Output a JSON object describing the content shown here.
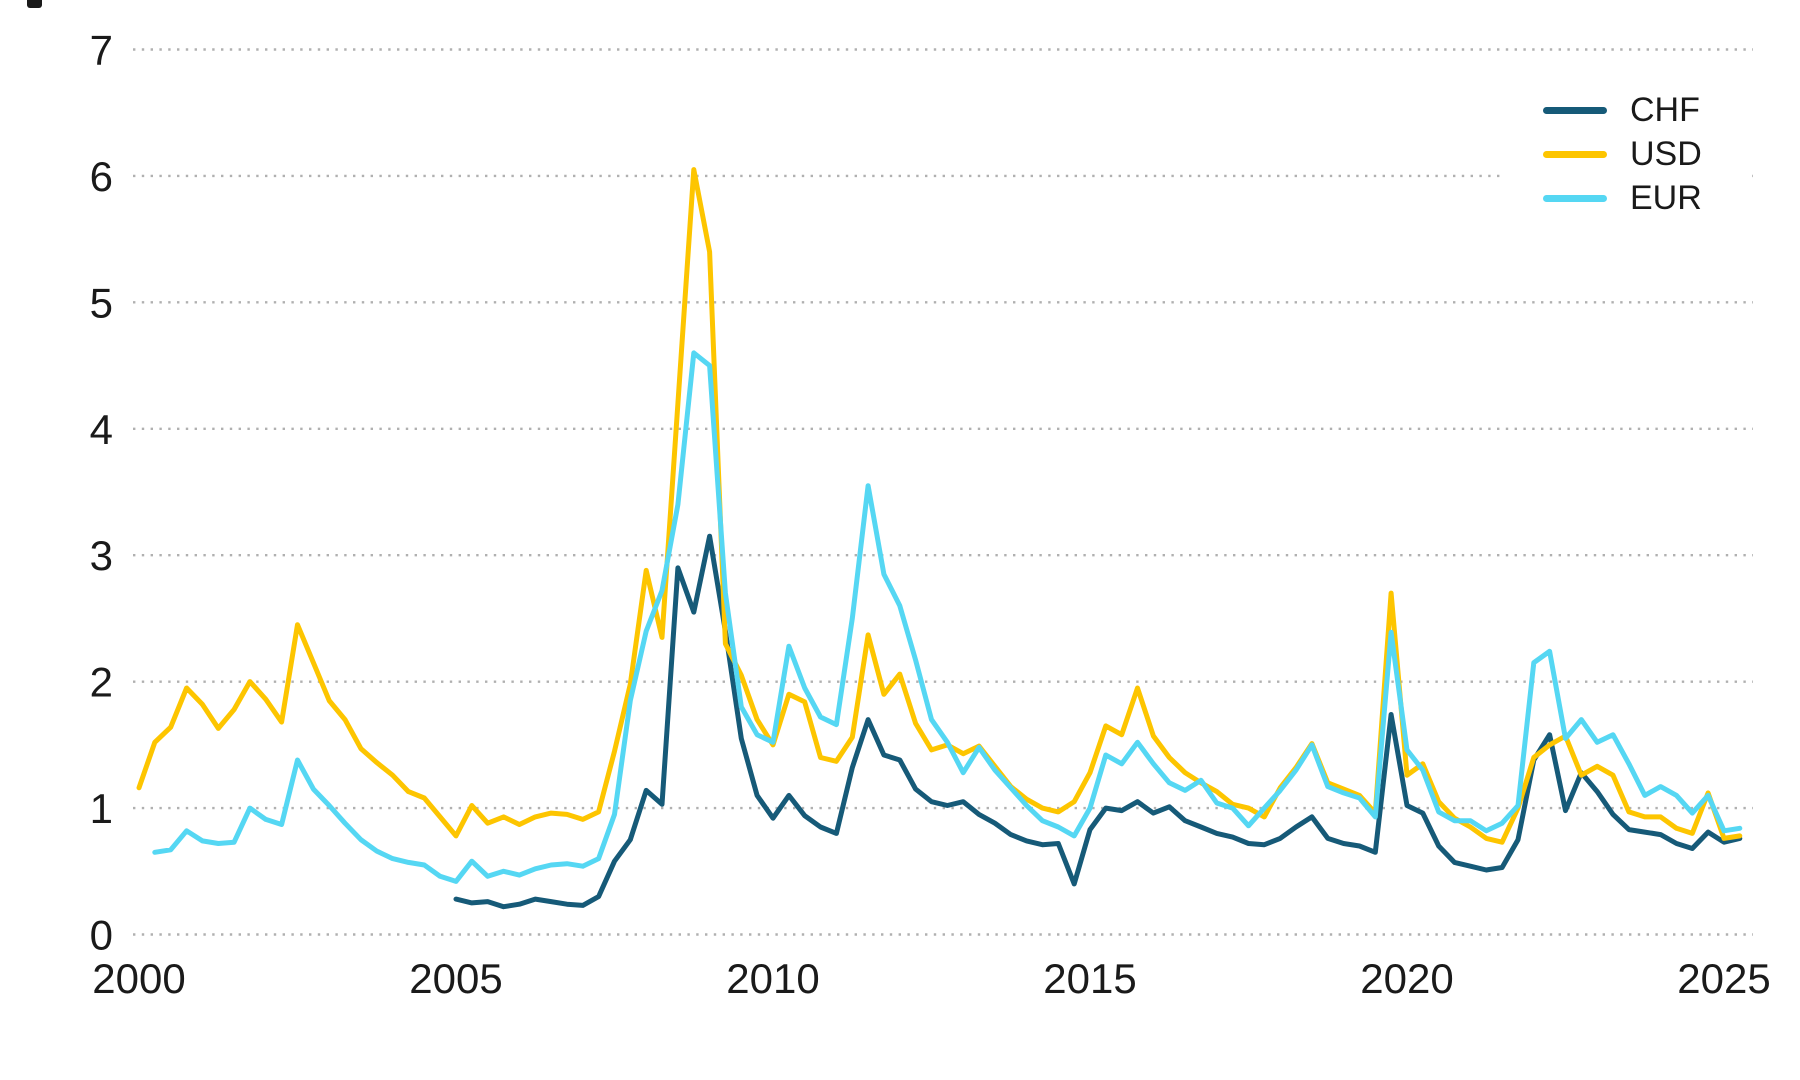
{
  "page": {
    "background": "#ffffff",
    "text_color": "#1a1a1a",
    "grid_color": "#b0b0b0"
  },
  "axes": {
    "y_ticks": [
      "0",
      "1",
      "2",
      "3",
      "4",
      "5",
      "6",
      "7"
    ],
    "x_ticks": [
      "2000",
      "2005",
      "2010",
      "2015",
      "2020",
      "2025"
    ]
  },
  "legend": {
    "position": "top-right",
    "items": [
      {
        "label": "CHF",
        "color": "#165a78"
      },
      {
        "label": "USD",
        "color": "#fdc500"
      },
      {
        "label": "EUR",
        "color": "#55d7f3"
      }
    ]
  },
  "chart_data": {
    "type": "line",
    "title": "",
    "xlabel": "",
    "ylabel": "",
    "x_range": [
      2000,
      2025.4
    ],
    "ylim": [
      0,
      7
    ],
    "grid": "horizontal-dotted",
    "legend_position": "top-right",
    "x_step_years": 0.25,
    "series": [
      {
        "name": "CHF",
        "color": "#165a78",
        "x_start": 2005.0,
        "values": [
          0.28,
          0.25,
          0.26,
          0.22,
          0.24,
          0.28,
          0.26,
          0.24,
          0.23,
          0.3,
          0.58,
          0.75,
          1.14,
          1.03,
          2.9,
          2.55,
          3.15,
          2.4,
          1.55,
          1.1,
          0.92,
          1.1,
          0.94,
          0.85,
          0.8,
          1.32,
          1.7,
          1.42,
          1.38,
          1.15,
          1.05,
          1.02,
          1.05,
          0.95,
          0.88,
          0.79,
          0.74,
          0.71,
          0.72,
          0.4,
          0.83,
          1.0,
          0.98,
          1.05,
          0.96,
          1.01,
          0.9,
          0.85,
          0.8,
          0.77,
          0.72,
          0.71,
          0.76,
          0.85,
          0.93,
          0.76,
          0.72,
          0.7,
          0.65,
          1.74,
          1.02,
          0.96,
          0.7,
          0.57,
          0.54,
          0.51,
          0.53,
          0.75,
          1.38,
          1.58,
          0.98,
          1.28,
          1.13,
          0.95,
          0.83,
          0.81,
          0.79,
          0.72,
          0.68,
          0.81,
          0.73,
          0.76
        ]
      },
      {
        "name": "USD",
        "color": "#fdc500",
        "x_start": 2000.0,
        "values": [
          1.16,
          1.52,
          1.64,
          1.95,
          1.82,
          1.63,
          1.78,
          2.0,
          1.86,
          1.68,
          2.45,
          2.15,
          1.85,
          1.7,
          1.47,
          1.36,
          1.26,
          1.13,
          1.08,
          0.93,
          0.78,
          1.02,
          0.88,
          0.93,
          0.87,
          0.93,
          0.96,
          0.95,
          0.91,
          0.97,
          1.45,
          1.98,
          2.88,
          2.35,
          4.2,
          6.05,
          5.4,
          2.3,
          2.05,
          1.7,
          1.5,
          1.9,
          1.84,
          1.4,
          1.37,
          1.56,
          2.37,
          1.9,
          2.06,
          1.67,
          1.46,
          1.5,
          1.43,
          1.49,
          1.33,
          1.17,
          1.07,
          1.0,
          0.97,
          1.05,
          1.28,
          1.65,
          1.58,
          1.95,
          1.57,
          1.4,
          1.28,
          1.2,
          1.13,
          1.03,
          1.0,
          0.93,
          1.16,
          1.32,
          1.51,
          1.2,
          1.15,
          1.1,
          0.96,
          2.7,
          1.26,
          1.35,
          1.05,
          0.92,
          0.85,
          0.76,
          0.73,
          1.0,
          1.4,
          1.5,
          1.57,
          1.26,
          1.33,
          1.26,
          0.97,
          0.93,
          0.93,
          0.84,
          0.8,
          1.12,
          0.76,
          0.78
        ]
      },
      {
        "name": "EUR",
        "color": "#55d7f3",
        "x_start": 2000.25,
        "values": [
          0.65,
          0.67,
          0.82,
          0.74,
          0.72,
          0.73,
          1.0,
          0.91,
          0.87,
          1.38,
          1.15,
          1.02,
          0.88,
          0.75,
          0.66,
          0.6,
          0.57,
          0.55,
          0.46,
          0.42,
          0.58,
          0.46,
          0.5,
          0.47,
          0.52,
          0.55,
          0.56,
          0.54,
          0.6,
          0.95,
          1.85,
          2.4,
          2.72,
          3.4,
          4.6,
          4.5,
          2.7,
          1.8,
          1.58,
          1.52,
          2.28,
          1.95,
          1.72,
          1.66,
          2.5,
          3.55,
          2.85,
          2.6,
          2.17,
          1.7,
          1.52,
          1.28,
          1.48,
          1.3,
          1.16,
          1.02,
          0.9,
          0.85,
          0.78,
          1.0,
          1.42,
          1.35,
          1.52,
          1.35,
          1.2,
          1.14,
          1.22,
          1.04,
          1.0,
          0.86,
          1.0,
          1.14,
          1.3,
          1.5,
          1.17,
          1.12,
          1.08,
          0.93,
          2.39,
          1.46,
          1.3,
          0.97,
          0.9,
          0.9,
          0.82,
          0.88,
          1.02,
          2.15,
          2.24,
          1.55,
          1.7,
          1.52,
          1.58,
          1.35,
          1.1,
          1.17,
          1.1,
          0.96,
          1.1,
          0.82,
          0.84
        ]
      }
    ]
  }
}
